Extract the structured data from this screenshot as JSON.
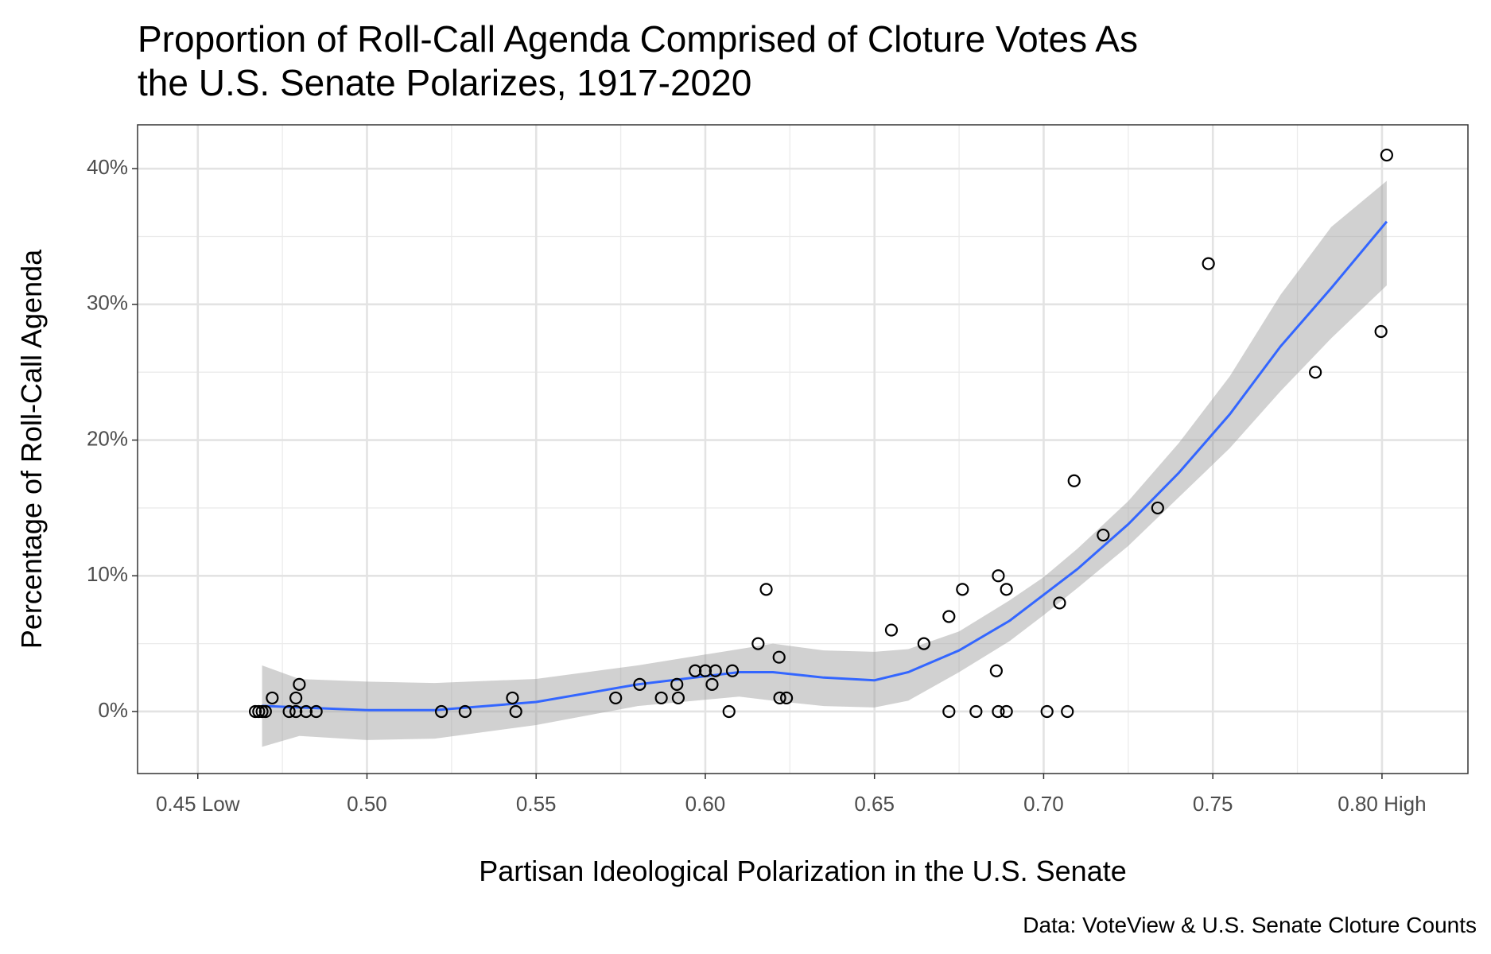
{
  "chart_data": {
    "type": "scatter",
    "title": "Proportion of Roll-Call Agenda Comprised of Cloture Votes As\nthe U.S. Senate Polarizes, 1917-2020",
    "x_label": "Partisan Ideological Polarization in the U.S. Senate",
    "y_label": "Percentage of Roll-Call Agenda",
    "caption": "Data: VoteView & U.S. Senate Cloture Counts",
    "xlim": [
      0.4322,
      0.8254
    ],
    "ylim": [
      -4.57,
      43.23
    ],
    "xticks": [
      {
        "value": 0.45,
        "label": "0.45\nLow"
      },
      {
        "value": 0.5,
        "label": "0.50"
      },
      {
        "value": 0.55,
        "label": "0.55"
      },
      {
        "value": 0.6,
        "label": "0.60"
      },
      {
        "value": 0.65,
        "label": "0.65"
      },
      {
        "value": 0.7,
        "label": "0.70"
      },
      {
        "value": 0.75,
        "label": "0.75"
      },
      {
        "value": 0.8,
        "label": "0.80\nHigh"
      }
    ],
    "yticks": [
      {
        "value": 0,
        "label": "0%"
      },
      {
        "value": 10,
        "label": "10%"
      },
      {
        "value": 20,
        "label": "20%"
      },
      {
        "value": 30,
        "label": "30%"
      },
      {
        "value": 40,
        "label": "40%"
      }
    ],
    "minor_xticks": [
      0.475,
      0.525,
      0.575,
      0.625,
      0.675,
      0.725,
      0.775
    ],
    "minor_yticks": [
      5,
      15,
      25,
      35
    ],
    "grid": true,
    "series": [
      {
        "color": "#000000",
        "x": [
          0.467,
          0.468,
          0.469,
          0.47,
          0.472,
          0.477,
          0.479,
          0.48,
          0.479,
          0.482,
          0.485,
          0.522,
          0.529,
          0.543,
          0.544,
          0.5735,
          0.5806,
          0.587,
          0.5916,
          0.592,
          0.597,
          0.6,
          0.602,
          0.603,
          0.607,
          0.608,
          0.6156,
          0.618,
          0.6218,
          0.622,
          0.624,
          0.655,
          0.6646,
          0.672,
          0.672,
          0.676,
          0.68,
          0.686,
          0.6866,
          0.6866,
          0.689,
          0.689,
          0.701,
          0.7047,
          0.707,
          0.709,
          0.7176,
          0.7337,
          0.7487,
          0.7803,
          0.7997,
          0.8014
        ],
        "values": [
          0,
          0,
          0,
          0,
          1,
          0,
          1,
          2,
          0,
          0,
          0,
          0,
          0,
          1,
          0,
          1,
          2,
          1,
          2,
          1,
          3,
          3,
          2,
          3,
          0,
          3,
          5,
          9,
          4,
          1,
          1,
          6,
          5,
          7,
          0,
          9,
          0,
          3,
          10,
          0,
          9,
          0,
          0,
          8,
          0,
          17,
          13,
          15,
          33,
          25,
          28,
          41
        ]
      }
    ],
    "smooth": {
      "color": "#3366ff",
      "band_color": "#999999",
      "x": [
        0.469,
        0.48,
        0.5,
        0.52,
        0.55,
        0.58,
        0.61,
        0.62,
        0.635,
        0.65,
        0.66,
        0.675,
        0.69,
        0.7,
        0.71,
        0.725,
        0.74,
        0.755,
        0.77,
        0.785,
        0.8014
      ],
      "values": [
        0.42,
        0.3,
        0.1,
        0.1,
        0.7,
        2.0,
        2.9,
        2.9,
        2.5,
        2.3,
        2.9,
        4.5,
        6.7,
        8.6,
        10.5,
        13.8,
        17.6,
        21.9,
        26.9,
        31.2,
        36.1
      ],
      "lower": [
        -2.6,
        -1.8,
        -2.1,
        -2.0,
        -1.0,
        0.4,
        1.1,
        0.8,
        0.4,
        0.3,
        0.8,
        2.9,
        5.2,
        7.1,
        9.1,
        12.2,
        15.8,
        19.4,
        23.6,
        27.5,
        31.4
      ],
      "upper": [
        3.4,
        2.4,
        2.2,
        2.1,
        2.4,
        3.4,
        4.6,
        5.0,
        4.5,
        4.4,
        4.6,
        5.9,
        8.2,
        9.9,
        12.0,
        15.5,
        19.8,
        24.7,
        30.7,
        35.7,
        39.1
      ]
    }
  }
}
